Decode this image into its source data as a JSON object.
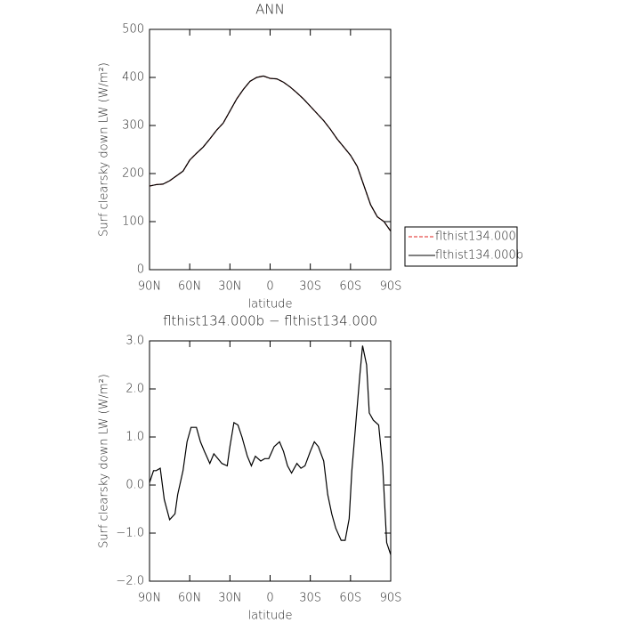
{
  "chart_data": [
    {
      "type": "line",
      "title": "ANN",
      "xlabel": "latitude",
      "ylabel": "Surf clearsky down LW (W/m²)",
      "x": [
        90,
        85,
        80,
        75,
        70,
        65,
        60,
        55,
        50,
        45,
        40,
        35,
        30,
        25,
        20,
        15,
        10,
        5,
        0,
        -5,
        -10,
        -15,
        -20,
        -25,
        -30,
        -35,
        -40,
        -45,
        -50,
        -55,
        -60,
        -65,
        -70,
        -75,
        -80,
        -85,
        -90
      ],
      "series": [
        {
          "name": "flthist134.000",
          "color": "#e0201c",
          "dash": true,
          "values": [
            174,
            177,
            178,
            185,
            195,
            205,
            228,
            242,
            255,
            272,
            290,
            305,
            330,
            355,
            375,
            392,
            400,
            403,
            398,
            397,
            390,
            380,
            368,
            355,
            340,
            325,
            310,
            292,
            272,
            255,
            238,
            215,
            175,
            135,
            110,
            100,
            80
          ]
        },
        {
          "name": "flthist134.000b",
          "color": "#000000",
          "dash": false,
          "values": [
            174,
            177,
            178,
            185,
            195,
            205,
            228,
            242,
            255,
            272,
            290,
            305,
            330,
            355,
            375,
            392,
            400,
            403,
            398,
            397,
            390,
            380,
            368,
            355,
            340,
            325,
            310,
            292,
            272,
            255,
            238,
            215,
            175,
            135,
            110,
            100,
            80
          ]
        }
      ],
      "xlim": [
        90,
        -90
      ],
      "xticks": [
        {
          "value": 90,
          "label": "90N"
        },
        {
          "value": 60,
          "label": "60N"
        },
        {
          "value": 30,
          "label": "30N"
        },
        0,
        {
          "value": -30,
          "label": "30S"
        },
        {
          "value": -60,
          "label": "60S"
        },
        {
          "value": -90,
          "label": "90S"
        }
      ],
      "ylim": [
        0,
        500
      ],
      "yticks": [
        0,
        100,
        200,
        300,
        400,
        500
      ],
      "legend": "right"
    },
    {
      "type": "line",
      "title": "flthist134.000b − flthist134.000",
      "xlabel": "latitude",
      "ylabel": "Surf clearsky down LW (W/m²)",
      "x": [
        90,
        87,
        85,
        82,
        79,
        75,
        71,
        69,
        65,
        62,
        59,
        55,
        52,
        49,
        45,
        42,
        39,
        36,
        32,
        30,
        27,
        24,
        21,
        17,
        14,
        11,
        7,
        4,
        1,
        -3,
        -7,
        -10,
        -13,
        -16,
        -20,
        -23,
        -26,
        -30,
        -33,
        -36,
        -40,
        -43,
        -46,
        -49,
        -53,
        -56,
        -59,
        -61,
        -64,
        -67,
        -69,
        -72,
        -74,
        -77,
        -81,
        -84,
        -87,
        -90
      ],
      "color": "#000000",
      "values": [
        0.05,
        0.3,
        0.3,
        0.35,
        -0.3,
        -0.72,
        -0.6,
        -0.2,
        0.3,
        0.9,
        1.2,
        1.2,
        0.9,
        0.7,
        0.45,
        0.65,
        0.55,
        0.45,
        0.4,
        0.8,
        1.3,
        1.25,
        1.0,
        0.6,
        0.4,
        0.6,
        0.5,
        0.55,
        0.55,
        0.8,
        0.9,
        0.7,
        0.4,
        0.25,
        0.45,
        0.35,
        0.4,
        0.7,
        0.9,
        0.8,
        0.5,
        -0.2,
        -0.6,
        -0.9,
        -1.15,
        -1.15,
        -0.7,
        0.3,
        1.3,
        2.3,
        2.9,
        2.5,
        1.5,
        1.35,
        1.25,
        0.4,
        -1.2,
        -1.45
      ],
      "xlim": [
        90,
        -90
      ],
      "xticks": [
        {
          "value": 90,
          "label": "90N"
        },
        {
          "value": 60,
          "label": "60N"
        },
        {
          "value": 30,
          "label": "30N"
        },
        0,
        {
          "value": -30,
          "label": "30S"
        },
        {
          "value": -60,
          "label": "60S"
        },
        {
          "value": -90,
          "label": "90S"
        }
      ],
      "ylim": [
        -2,
        3
      ],
      "yticks": [
        {
          "value": -2,
          "label": "−2.0"
        },
        {
          "value": -1,
          "label": "−1.0"
        },
        {
          "value": 0,
          "label": "0.0"
        },
        {
          "value": 1,
          "label": "1.0"
        },
        {
          "value": 2,
          "label": "2.0"
        },
        {
          "value": 3,
          "label": "3.0"
        }
      ]
    }
  ]
}
